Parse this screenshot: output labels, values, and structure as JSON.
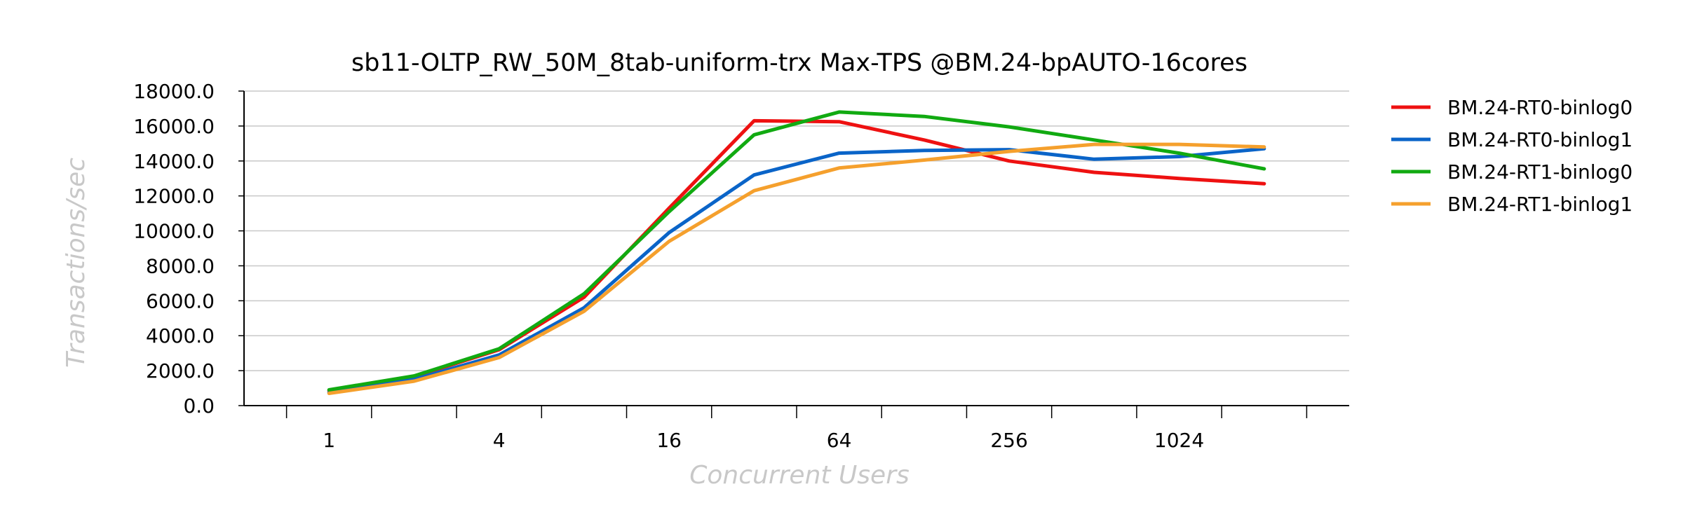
{
  "chart_data": {
    "type": "line",
    "title": "sb11-OLTP_RW_50M_8tab-uniform-trx Max-TPS @BM.24-bpAUTO-16cores",
    "xlabel": "Concurrent Users",
    "ylabel": "Transactions/sec",
    "x": [
      1,
      2,
      4,
      8,
      16,
      32,
      64,
      128,
      256,
      512,
      1024,
      2048
    ],
    "x_scale": "log2",
    "x_tick_labels": [
      "1",
      "4",
      "16",
      "64",
      "256",
      "1024"
    ],
    "x_tick_values": [
      1,
      4,
      16,
      64,
      256,
      1024
    ],
    "ylim": [
      0,
      18000
    ],
    "y_ticks": [
      "0.0",
      "2000.0",
      "4000.0",
      "6000.0",
      "8000.0",
      "10000.0",
      "12000.0",
      "14000.0",
      "16000.0",
      "18000.0"
    ],
    "y_tick_values": [
      0,
      2000,
      4000,
      6000,
      8000,
      10000,
      12000,
      14000,
      16000,
      18000
    ],
    "grid": "horizontal",
    "legend_position": "right",
    "series": [
      {
        "name": "BM.24-RT0-binlog0",
        "color": "#ee1111",
        "values": [
          850,
          1650,
          3200,
          6200,
          11300,
          16300,
          16250,
          15200,
          14000,
          13350,
          13000,
          12700
        ]
      },
      {
        "name": "BM.24-RT0-binlog1",
        "color": "#0a64c8",
        "values": [
          750,
          1500,
          2900,
          5600,
          9900,
          13200,
          14450,
          14600,
          14650,
          14100,
          14250,
          14700
        ]
      },
      {
        "name": "BM.24-RT1-binlog0",
        "color": "#11aa11",
        "values": [
          900,
          1700,
          3250,
          6400,
          11100,
          15500,
          16800,
          16550,
          15950,
          15200,
          14450,
          13550
        ]
      },
      {
        "name": "BM.24-RT1-binlog1",
        "color": "#f5a02d",
        "values": [
          700,
          1400,
          2750,
          5400,
          9400,
          12300,
          13600,
          14050,
          14550,
          14950,
          14950,
          14800
        ]
      }
    ]
  }
}
